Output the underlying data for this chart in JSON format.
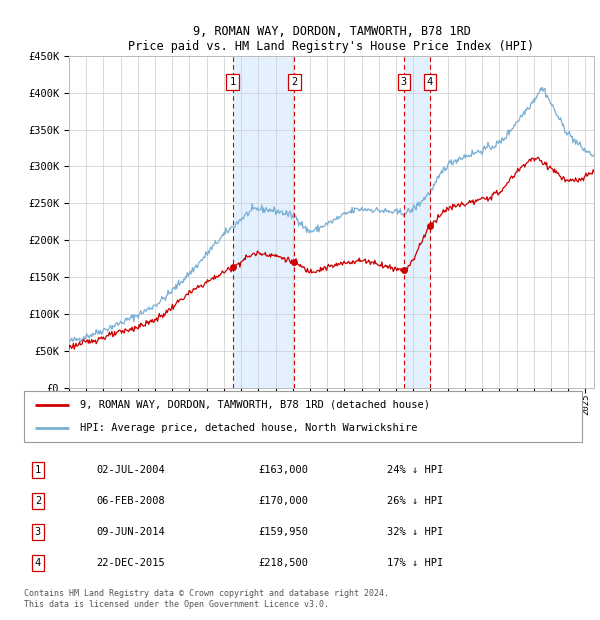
{
  "title": "9, ROMAN WAY, DORDON, TAMWORTH, B78 1RD",
  "subtitle": "Price paid vs. HM Land Registry's House Price Index (HPI)",
  "legend_property": "9, ROMAN WAY, DORDON, TAMWORTH, B78 1RD (detached house)",
  "legend_hpi": "HPI: Average price, detached house, North Warwickshire",
  "footer": "Contains HM Land Registry data © Crown copyright and database right 2024.\nThis data is licensed under the Open Government Licence v3.0.",
  "transactions": [
    {
      "num": 1,
      "date": "02-JUL-2004",
      "date_dec": 2004.5,
      "price": 163000,
      "pct": "24% ↓ HPI"
    },
    {
      "num": 2,
      "date": "06-FEB-2008",
      "date_dec": 2008.1,
      "price": 170000,
      "pct": "26% ↓ HPI"
    },
    {
      "num": 3,
      "date": "09-JUN-2014",
      "date_dec": 2014.44,
      "price": 159950,
      "pct": "32% ↓ HPI"
    },
    {
      "num": 4,
      "date": "22-DEC-2015",
      "date_dec": 2015.97,
      "price": 218500,
      "pct": "17% ↓ HPI"
    }
  ],
  "property_color": "#cc0000",
  "hpi_color": "#7aafd4",
  "shade_color": "#ddeeff",
  "vline_color": "#cc0000",
  "marker_color": "#cc0000",
  "ylim": [
    0,
    450000
  ],
  "xlim_start": 1995.0,
  "xlim_end": 2025.5,
  "yticks": [
    0,
    50000,
    100000,
    150000,
    200000,
    250000,
    300000,
    350000,
    400000,
    450000
  ],
  "ytick_labels": [
    "£0",
    "£50K",
    "£100K",
    "£150K",
    "£200K",
    "£250K",
    "£300K",
    "£350K",
    "£400K",
    "£450K"
  ],
  "xticks": [
    1995,
    1996,
    1997,
    1998,
    1999,
    2000,
    2001,
    2002,
    2003,
    2004,
    2005,
    2006,
    2007,
    2008,
    2009,
    2010,
    2011,
    2012,
    2013,
    2014,
    2015,
    2016,
    2017,
    2018,
    2019,
    2020,
    2021,
    2022,
    2023,
    2024,
    2025
  ],
  "hpi_anchors_x": [
    1995,
    1997,
    2000,
    2002,
    2004.5,
    2006,
    2008.1,
    2009,
    2010,
    2012,
    2014.44,
    2015.97,
    2017,
    2019,
    2020,
    2021,
    2022,
    2022.5,
    2023,
    2024,
    2025.5
  ],
  "hpi_anchors_y": [
    62000,
    78000,
    112000,
    155000,
    218000,
    242000,
    232000,
    212000,
    222000,
    242000,
    237000,
    265000,
    302000,
    322000,
    332000,
    360000,
    390000,
    405000,
    385000,
    345000,
    315000
  ],
  "prop_anchors_x": [
    1995,
    1997,
    2000,
    2002,
    2004.5,
    2006,
    2008.1,
    2009,
    2010,
    2012,
    2014.44,
    2015.97,
    2017,
    2019,
    2020,
    2021,
    2022,
    2023,
    2024,
    2025.5
  ],
  "prop_anchors_y": [
    55000,
    68000,
    92000,
    128000,
    163000,
    182000,
    170000,
    158000,
    163000,
    172000,
    159950,
    218500,
    242000,
    255000,
    265000,
    292000,
    310000,
    298000,
    280000,
    295000
  ],
  "hpi_noise_seed": 42,
  "hpi_noise_scale": 2500,
  "prop_noise_seed": 123,
  "prop_noise_scale": 2000
}
